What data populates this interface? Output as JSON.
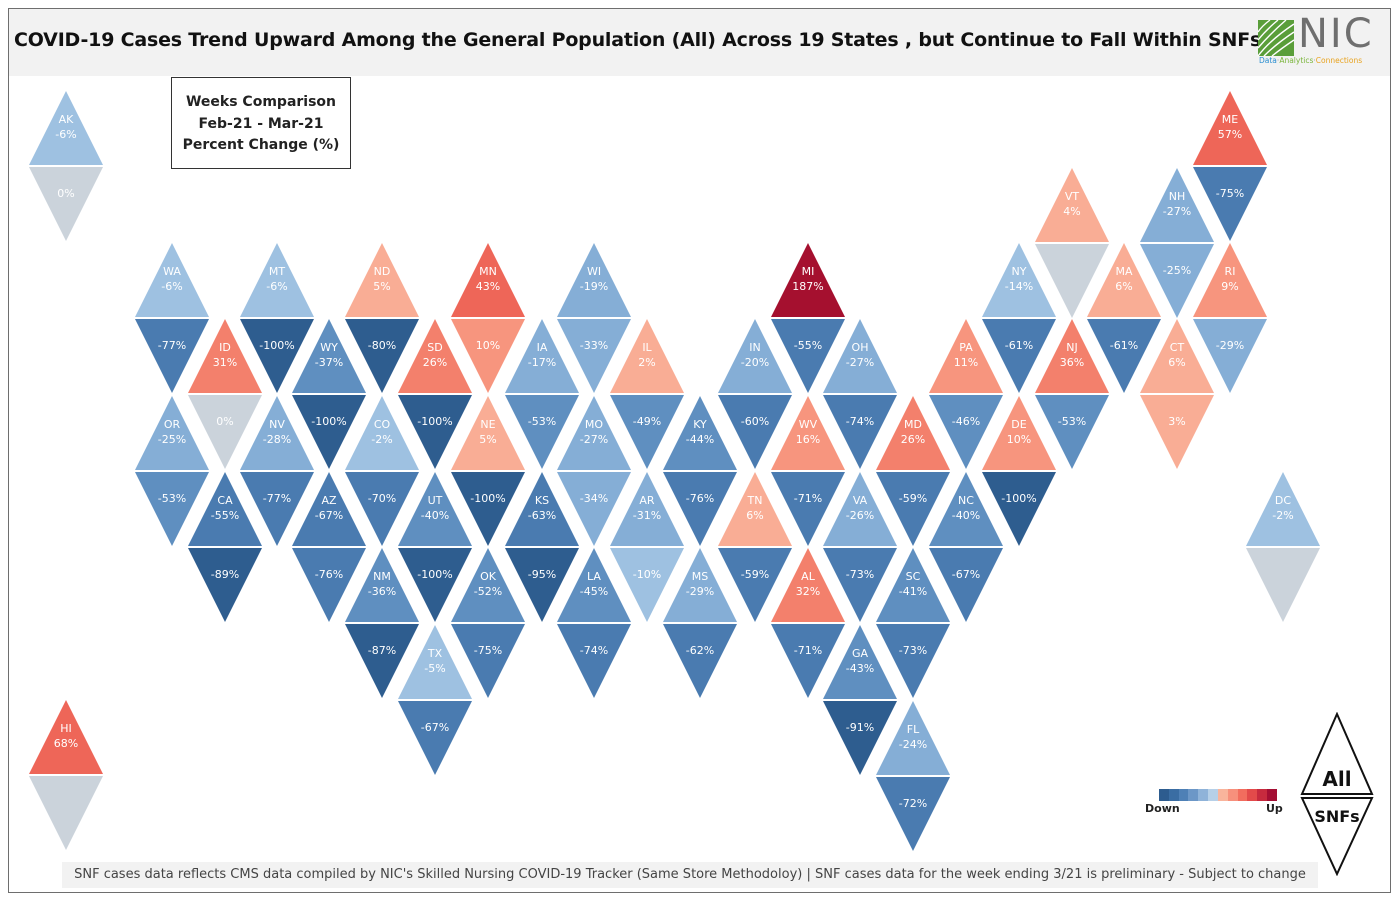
{
  "title": "COVID-19 Cases Trend Upward Among the General Population (All) Across 19 States , but Continue to Fall Within SNFs",
  "logo": {
    "name": "NIC",
    "tag1": "Data",
    "tag2": "Analytics",
    "tag3": "Connections",
    "sep": "·"
  },
  "legend_box": {
    "line1": "Weeks Comparison",
    "line2": "Feb-21 - Mar-21",
    "line3": "Percent Change (%)"
  },
  "color_legend": {
    "down": "Down",
    "up": "Up",
    "colors": [
      "#2d5c8f",
      "#3a6da3",
      "#4e80b6",
      "#6c97c7",
      "#8fb3d9",
      "#b6d0e8",
      "#f9b49c",
      "#f7907c",
      "#f26d5e",
      "#e34a4a",
      "#c72a3e",
      "#a40e33"
    ]
  },
  "all_snfs": {
    "all": "All",
    "snfs": "SNFs"
  },
  "footer": "SNF cases data reflects CMS data compiled by NIC's Skilled Nursing COVID-19 Tracker (Same Store Methodoloy) | SNF cases data for the week ending 3/21 is preliminary - Subject to change",
  "states": [
    {
      "abbr": "AK",
      "all": -6,
      "snf": 0
    },
    {
      "abbr": "HI",
      "all": 68,
      "snf": null
    },
    {
      "abbr": "ME",
      "all": 57,
      "snf": -75
    },
    {
      "abbr": "VT",
      "all": 4,
      "snf": null
    },
    {
      "abbr": "NH",
      "all": -27,
      "snf": -25
    },
    {
      "abbr": "WA",
      "all": -6,
      "snf": -77
    },
    {
      "abbr": "MT",
      "all": -6,
      "snf": -100
    },
    {
      "abbr": "ND",
      "all": 5,
      "snf": -80
    },
    {
      "abbr": "MN",
      "all": 43,
      "snf": 10
    },
    {
      "abbr": "WI",
      "all": -19,
      "snf": -33
    },
    {
      "abbr": "MI",
      "all": 187,
      "snf": -55
    },
    {
      "abbr": "NY",
      "all": -14,
      "snf": -61
    },
    {
      "abbr": "MA",
      "all": 6,
      "snf": -61
    },
    {
      "abbr": "RI",
      "all": 9,
      "snf": -29
    },
    {
      "abbr": "ID",
      "all": 31,
      "snf": 0
    },
    {
      "abbr": "WY",
      "all": -37,
      "snf": -100
    },
    {
      "abbr": "SD",
      "all": 26,
      "snf": -100
    },
    {
      "abbr": "IA",
      "all": -17,
      "snf": -53
    },
    {
      "abbr": "IL",
      "all": 2,
      "snf": -49
    },
    {
      "abbr": "IN",
      "all": -20,
      "snf": -60
    },
    {
      "abbr": "OH",
      "all": -27,
      "snf": -74
    },
    {
      "abbr": "PA",
      "all": 11,
      "snf": -46
    },
    {
      "abbr": "NJ",
      "all": 36,
      "snf": -53
    },
    {
      "abbr": "CT",
      "all": 6,
      "snf": 3
    },
    {
      "abbr": "OR",
      "all": -25,
      "snf": -53
    },
    {
      "abbr": "NV",
      "all": -28,
      "snf": -77
    },
    {
      "abbr": "CO",
      "all": -2,
      "snf": -70
    },
    {
      "abbr": "NE",
      "all": 5,
      "snf": -100
    },
    {
      "abbr": "MO",
      "all": -27,
      "snf": -34
    },
    {
      "abbr": "KY",
      "all": -44,
      "snf": -76
    },
    {
      "abbr": "WV",
      "all": 16,
      "snf": -71
    },
    {
      "abbr": "MD",
      "all": 26,
      "snf": -59
    },
    {
      "abbr": "DE",
      "all": 10,
      "snf": -100
    },
    {
      "abbr": "CA",
      "all": -55,
      "snf": -89
    },
    {
      "abbr": "AZ",
      "all": -67,
      "snf": -76
    },
    {
      "abbr": "UT",
      "all": -40,
      "snf": -100
    },
    {
      "abbr": "KS",
      "all": -63,
      "snf": -95
    },
    {
      "abbr": "AR",
      "all": -31,
      "snf": -10
    },
    {
      "abbr": "TN",
      "all": 6,
      "snf": -59
    },
    {
      "abbr": "VA",
      "all": -26,
      "snf": -73
    },
    {
      "abbr": "NC",
      "all": -40,
      "snf": -67
    },
    {
      "abbr": "DC",
      "all": -2,
      "snf": null
    },
    {
      "abbr": "NM",
      "all": -36,
      "snf": -87
    },
    {
      "abbr": "OK",
      "all": -52,
      "snf": -75
    },
    {
      "abbr": "LA",
      "all": -45,
      "snf": -74
    },
    {
      "abbr": "MS",
      "all": -29,
      "snf": -62
    },
    {
      "abbr": "AL",
      "all": 32,
      "snf": -71
    },
    {
      "abbr": "SC",
      "all": -41,
      "snf": -73
    },
    {
      "abbr": "TX",
      "all": -5,
      "snf": -67
    },
    {
      "abbr": "GA",
      "all": -43,
      "snf": -91
    },
    {
      "abbr": "FL",
      "all": -24,
      "snf": -72
    }
  ]
}
